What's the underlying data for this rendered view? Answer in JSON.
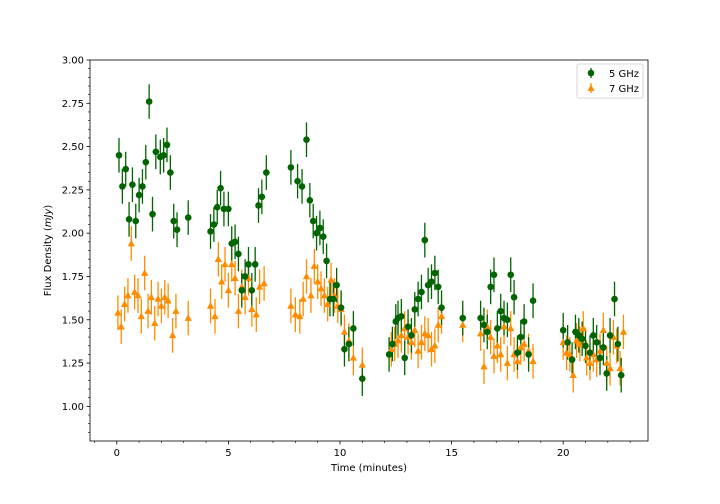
{
  "chart_data": {
    "type": "scatter",
    "xlabel": "Time (minutes)",
    "ylabel_prefix": "Flux Density (",
    "ylabel_unit": "mJy",
    "ylabel_suffix": ")",
    "xlim": [
      -1.2,
      23.8
    ],
    "ylim": [
      0.8,
      3.0
    ],
    "x_ticks": [
      0,
      5,
      10,
      15,
      20
    ],
    "x_tick_labels": [
      "0",
      "5",
      "10",
      "15",
      "20"
    ],
    "y_ticks": [
      1.0,
      1.25,
      1.5,
      1.75,
      2.0,
      2.25,
      2.5,
      2.75,
      3.0
    ],
    "y_tick_labels": [
      "1.00",
      "1.25",
      "1.50",
      "1.75",
      "2.00",
      "2.25",
      "2.50",
      "2.75",
      "3.00"
    ],
    "grid": false,
    "legend_position": "top-right",
    "series": [
      {
        "name": "5 GHz",
        "color": "#006400",
        "marker": "circle",
        "x": [
          0.1,
          0.25,
          0.4,
          0.55,
          0.7,
          0.85,
          1.0,
          1.15,
          1.3,
          1.45,
          1.6,
          1.75,
          1.95,
          2.1,
          2.25,
          2.4,
          2.55,
          2.7,
          3.2,
          4.2,
          4.35,
          4.5,
          4.65,
          4.8,
          5.0,
          5.15,
          5.3,
          5.45,
          5.6,
          5.75,
          5.9,
          6.05,
          6.2,
          6.35,
          6.5,
          6.7,
          7.8,
          8.1,
          8.3,
          8.5,
          8.65,
          8.8,
          8.95,
          9.1,
          9.25,
          9.4,
          9.55,
          9.7,
          9.85,
          10.05,
          10.2,
          10.4,
          10.6,
          11.0,
          12.2,
          12.35,
          12.5,
          12.6,
          12.75,
          12.9,
          13.05,
          13.2,
          13.35,
          13.5,
          13.65,
          13.8,
          13.95,
          14.1,
          14.25,
          14.4,
          14.55,
          15.5,
          16.3,
          16.45,
          16.6,
          16.75,
          16.9,
          17.05,
          17.2,
          17.35,
          17.5,
          17.65,
          17.8,
          17.95,
          18.1,
          18.25,
          18.45,
          18.65,
          20.0,
          20.2,
          20.4,
          20.55,
          20.7,
          20.85,
          21.0,
          21.2,
          21.35,
          21.5,
          21.65,
          21.8,
          21.95,
          22.1,
          22.3,
          22.45,
          22.6
        ],
        "y": [
          2.45,
          2.27,
          2.37,
          2.08,
          2.28,
          2.07,
          2.22,
          2.27,
          2.41,
          2.76,
          2.11,
          2.47,
          2.44,
          2.45,
          2.51,
          2.35,
          2.07,
          2.02,
          2.09,
          2.01,
          2.05,
          2.15,
          2.26,
          2.14,
          2.14,
          1.94,
          1.95,
          1.88,
          1.67,
          1.75,
          1.82,
          1.67,
          1.82,
          2.16,
          2.21,
          2.35,
          2.38,
          2.3,
          2.27,
          2.54,
          2.19,
          2.07,
          2.0,
          2.03,
          1.98,
          1.84,
          1.62,
          1.62,
          1.7,
          1.57,
          1.33,
          1.36,
          1.45,
          1.16,
          1.3,
          1.36,
          1.49,
          1.51,
          1.52,
          1.28,
          1.46,
          1.41,
          1.56,
          1.62,
          1.66,
          1.96,
          1.7,
          1.72,
          1.77,
          1.69,
          1.57,
          1.51,
          1.51,
          1.47,
          1.43,
          1.69,
          1.76,
          1.45,
          1.55,
          1.51,
          1.5,
          1.76,
          1.63,
          1.31,
          1.4,
          1.49,
          1.3,
          1.61,
          1.44,
          1.37,
          1.27,
          1.43,
          1.41,
          1.39,
          1.35,
          1.31,
          1.41,
          1.37,
          1.28,
          1.34,
          1.19,
          1.41,
          1.62,
          1.36,
          1.18
        ],
        "err": [
          0.1,
          0.1,
          0.1,
          0.1,
          0.1,
          0.1,
          0.1,
          0.1,
          0.1,
          0.1,
          0.1,
          0.1,
          0.1,
          0.1,
          0.1,
          0.1,
          0.1,
          0.1,
          0.1,
          0.1,
          0.1,
          0.1,
          0.1,
          0.1,
          0.1,
          0.1,
          0.1,
          0.1,
          0.1,
          0.1,
          0.1,
          0.1,
          0.1,
          0.1,
          0.1,
          0.1,
          0.1,
          0.1,
          0.1,
          0.1,
          0.1,
          0.1,
          0.1,
          0.1,
          0.1,
          0.1,
          0.1,
          0.1,
          0.1,
          0.1,
          0.1,
          0.1,
          0.1,
          0.1,
          0.1,
          0.1,
          0.1,
          0.1,
          0.1,
          0.1,
          0.1,
          0.1,
          0.1,
          0.1,
          0.1,
          0.1,
          0.1,
          0.1,
          0.1,
          0.1,
          0.1,
          0.1,
          0.1,
          0.1,
          0.1,
          0.1,
          0.1,
          0.1,
          0.1,
          0.1,
          0.1,
          0.1,
          0.1,
          0.1,
          0.1,
          0.1,
          0.1,
          0.1,
          0.1,
          0.1,
          0.1,
          0.1,
          0.1,
          0.1,
          0.1,
          0.1,
          0.1,
          0.1,
          0.1,
          0.1,
          0.1,
          0.1,
          0.1,
          0.1,
          0.1
        ]
      },
      {
        "name": "7 GHz",
        "color": "#FF8C00",
        "marker": "triangle",
        "x": [
          0.05,
          0.2,
          0.35,
          0.5,
          0.65,
          0.8,
          0.95,
          1.1,
          1.25,
          1.4,
          1.55,
          1.7,
          1.85,
          2.0,
          2.15,
          2.3,
          2.5,
          2.65,
          3.2,
          4.2,
          4.4,
          4.55,
          4.7,
          4.85,
          5.0,
          5.15,
          5.3,
          5.45,
          5.6,
          5.75,
          5.9,
          6.05,
          6.25,
          6.4,
          6.6,
          7.8,
          8.0,
          8.2,
          8.35,
          8.5,
          8.7,
          8.85,
          9.0,
          9.15,
          9.3,
          9.45,
          9.6,
          9.75,
          9.9,
          10.05,
          10.2,
          10.4,
          10.6,
          11.0,
          12.3,
          12.45,
          12.6,
          12.75,
          12.9,
          13.05,
          13.2,
          13.35,
          13.5,
          13.65,
          13.8,
          13.95,
          14.1,
          14.25,
          14.4,
          14.55,
          15.5,
          16.3,
          16.45,
          16.6,
          16.75,
          16.9,
          17.05,
          17.2,
          17.35,
          17.5,
          17.65,
          17.8,
          17.95,
          18.1,
          18.25,
          18.45,
          18.65,
          20.0,
          20.15,
          20.3,
          20.45,
          20.6,
          20.75,
          20.9,
          21.05,
          21.2,
          21.35,
          21.5,
          21.65,
          21.8,
          21.95,
          22.1,
          22.25,
          22.4,
          22.55,
          22.7
        ],
        "y": [
          1.54,
          1.46,
          1.59,
          1.64,
          1.94,
          1.66,
          1.64,
          1.52,
          1.77,
          1.55,
          1.63,
          1.48,
          1.62,
          1.58,
          1.63,
          1.61,
          1.41,
          1.55,
          1.51,
          1.58,
          1.52,
          1.85,
          1.72,
          1.82,
          1.67,
          1.82,
          1.74,
          1.55,
          1.69,
          1.63,
          1.74,
          1.56,
          1.53,
          1.69,
          1.71,
          1.58,
          1.53,
          1.52,
          1.62,
          1.75,
          1.64,
          1.81,
          1.72,
          1.68,
          1.64,
          1.59,
          1.73,
          1.64,
          1.58,
          1.56,
          1.43,
          1.38,
          1.28,
          1.24,
          1.33,
          1.36,
          1.38,
          1.41,
          1.45,
          1.4,
          1.37,
          1.44,
          1.32,
          1.37,
          1.42,
          1.41,
          1.33,
          1.35,
          1.47,
          1.52,
          1.47,
          1.42,
          1.23,
          1.46,
          1.4,
          1.29,
          1.35,
          1.3,
          1.46,
          1.25,
          1.45,
          1.3,
          1.26,
          1.34,
          1.36,
          1.32,
          1.26,
          1.37,
          1.31,
          1.3,
          1.18,
          1.38,
          1.36,
          1.45,
          1.28,
          1.25,
          1.3,
          1.27,
          1.32,
          1.44,
          1.25,
          1.22,
          1.4,
          1.35,
          1.22,
          1.43
        ],
        "err": [
          0.1,
          0.1,
          0.1,
          0.1,
          0.1,
          0.1,
          0.1,
          0.1,
          0.1,
          0.1,
          0.1,
          0.1,
          0.1,
          0.1,
          0.1,
          0.1,
          0.1,
          0.1,
          0.1,
          0.1,
          0.1,
          0.1,
          0.1,
          0.1,
          0.1,
          0.1,
          0.1,
          0.1,
          0.1,
          0.1,
          0.1,
          0.1,
          0.1,
          0.1,
          0.1,
          0.1,
          0.1,
          0.1,
          0.1,
          0.1,
          0.1,
          0.1,
          0.1,
          0.1,
          0.1,
          0.1,
          0.1,
          0.1,
          0.1,
          0.1,
          0.1,
          0.1,
          0.1,
          0.1,
          0.1,
          0.1,
          0.1,
          0.1,
          0.1,
          0.1,
          0.1,
          0.1,
          0.1,
          0.1,
          0.1,
          0.1,
          0.1,
          0.1,
          0.1,
          0.1,
          0.1,
          0.1,
          0.1,
          0.1,
          0.1,
          0.1,
          0.1,
          0.1,
          0.1,
          0.1,
          0.1,
          0.1,
          0.1,
          0.1,
          0.1,
          0.1,
          0.1,
          0.1,
          0.1,
          0.1,
          0.1,
          0.1,
          0.1,
          0.1,
          0.1,
          0.1,
          0.1,
          0.1,
          0.1,
          0.1,
          0.1,
          0.1,
          0.1,
          0.1,
          0.1,
          0.1
        ]
      }
    ]
  }
}
